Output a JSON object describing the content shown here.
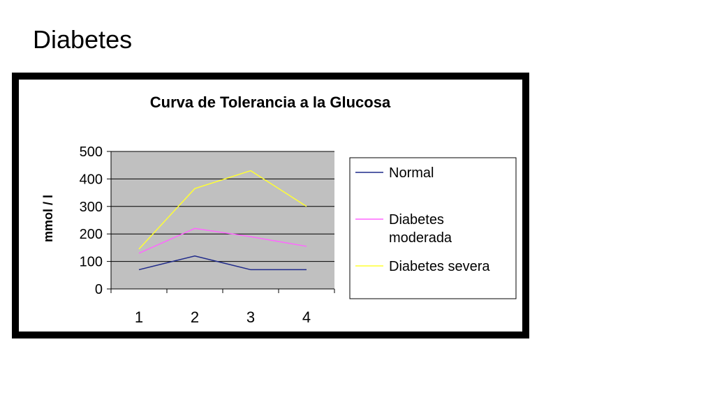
{
  "slide": {
    "title": "Diabetes"
  },
  "colors": {
    "plot_bg": "#c0c0c0",
    "frame": "#000000",
    "chart_bg": "#ffffff",
    "grid": "#000000"
  },
  "chart_data": {
    "type": "line",
    "title": "Curva de Tolerancia a la Glucosa",
    "xlabel": "",
    "ylabel": "mmol / l",
    "categories": [
      "1",
      "2",
      "3",
      "4"
    ],
    "ylim": [
      0,
      500
    ],
    "yticks": [
      0,
      100,
      200,
      300,
      400,
      500
    ],
    "grid": true,
    "legend_position": "right",
    "series": [
      {
        "name": "Normal",
        "color": "#1f2a8a",
        "values": [
          70,
          120,
          70,
          70
        ]
      },
      {
        "name": "Diabetes moderada",
        "legend_lines": [
          "Diabetes",
          "moderada"
        ],
        "color": "#ff66ff",
        "values": [
          130,
          220,
          190,
          155
        ]
      },
      {
        "name": "Diabetes severa",
        "color": "#ffff33",
        "values": [
          145,
          365,
          430,
          300
        ]
      }
    ]
  }
}
